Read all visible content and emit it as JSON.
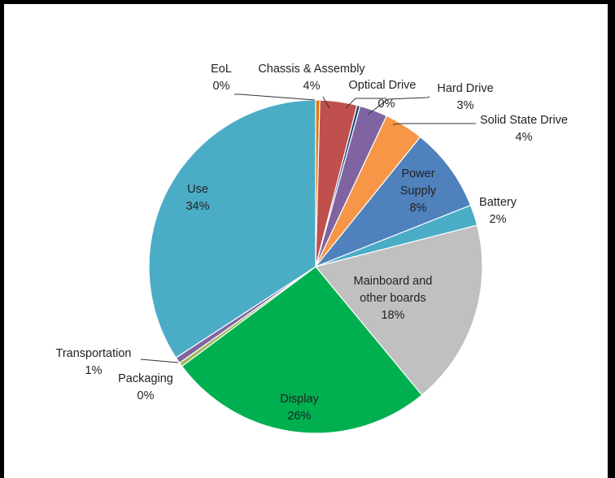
{
  "chart_data": {
    "type": "pie",
    "title": "",
    "start_angle_deg": 0,
    "direction": "clockwise",
    "slices": [
      {
        "name": "EoL",
        "label": "0%",
        "value": 0.4,
        "color": "#E07A10"
      },
      {
        "name": "Chassis & Assembly",
        "label": "4%",
        "value": 3.6,
        "color": "#C0504D"
      },
      {
        "name": "Optical Drive",
        "label": "0%",
        "value": 0.3,
        "color": "#1F497D"
      },
      {
        "name": "Hard Drive",
        "label": "3%",
        "value": 2.7,
        "color": "#8064A2"
      },
      {
        "name": "Solid State Drive",
        "label": "4%",
        "value": 3.8,
        "color": "#F79646"
      },
      {
        "name": "Power Supply",
        "label": "8%",
        "value": 8.2,
        "color": "#4F81BD"
      },
      {
        "name": "Battery",
        "label": "2%",
        "value": 2.0,
        "color": "#4BACC6"
      },
      {
        "name": "Mainboard and other boards",
        "label": "18%",
        "value": 18.0,
        "color": "#C0C0C0"
      },
      {
        "name": "Display",
        "label": "26%",
        "value": 25.8,
        "color": "#00B050"
      },
      {
        "name": "Packaging",
        "label": "0%",
        "value": 0.4,
        "color": "#9BBB59"
      },
      {
        "name": "Transportation",
        "label": "1%",
        "value": 0.6,
        "color": "#8064A2"
      },
      {
        "name": "Use",
        "label": "34%",
        "value": 34.2,
        "color": "#4BACC6"
      }
    ]
  }
}
